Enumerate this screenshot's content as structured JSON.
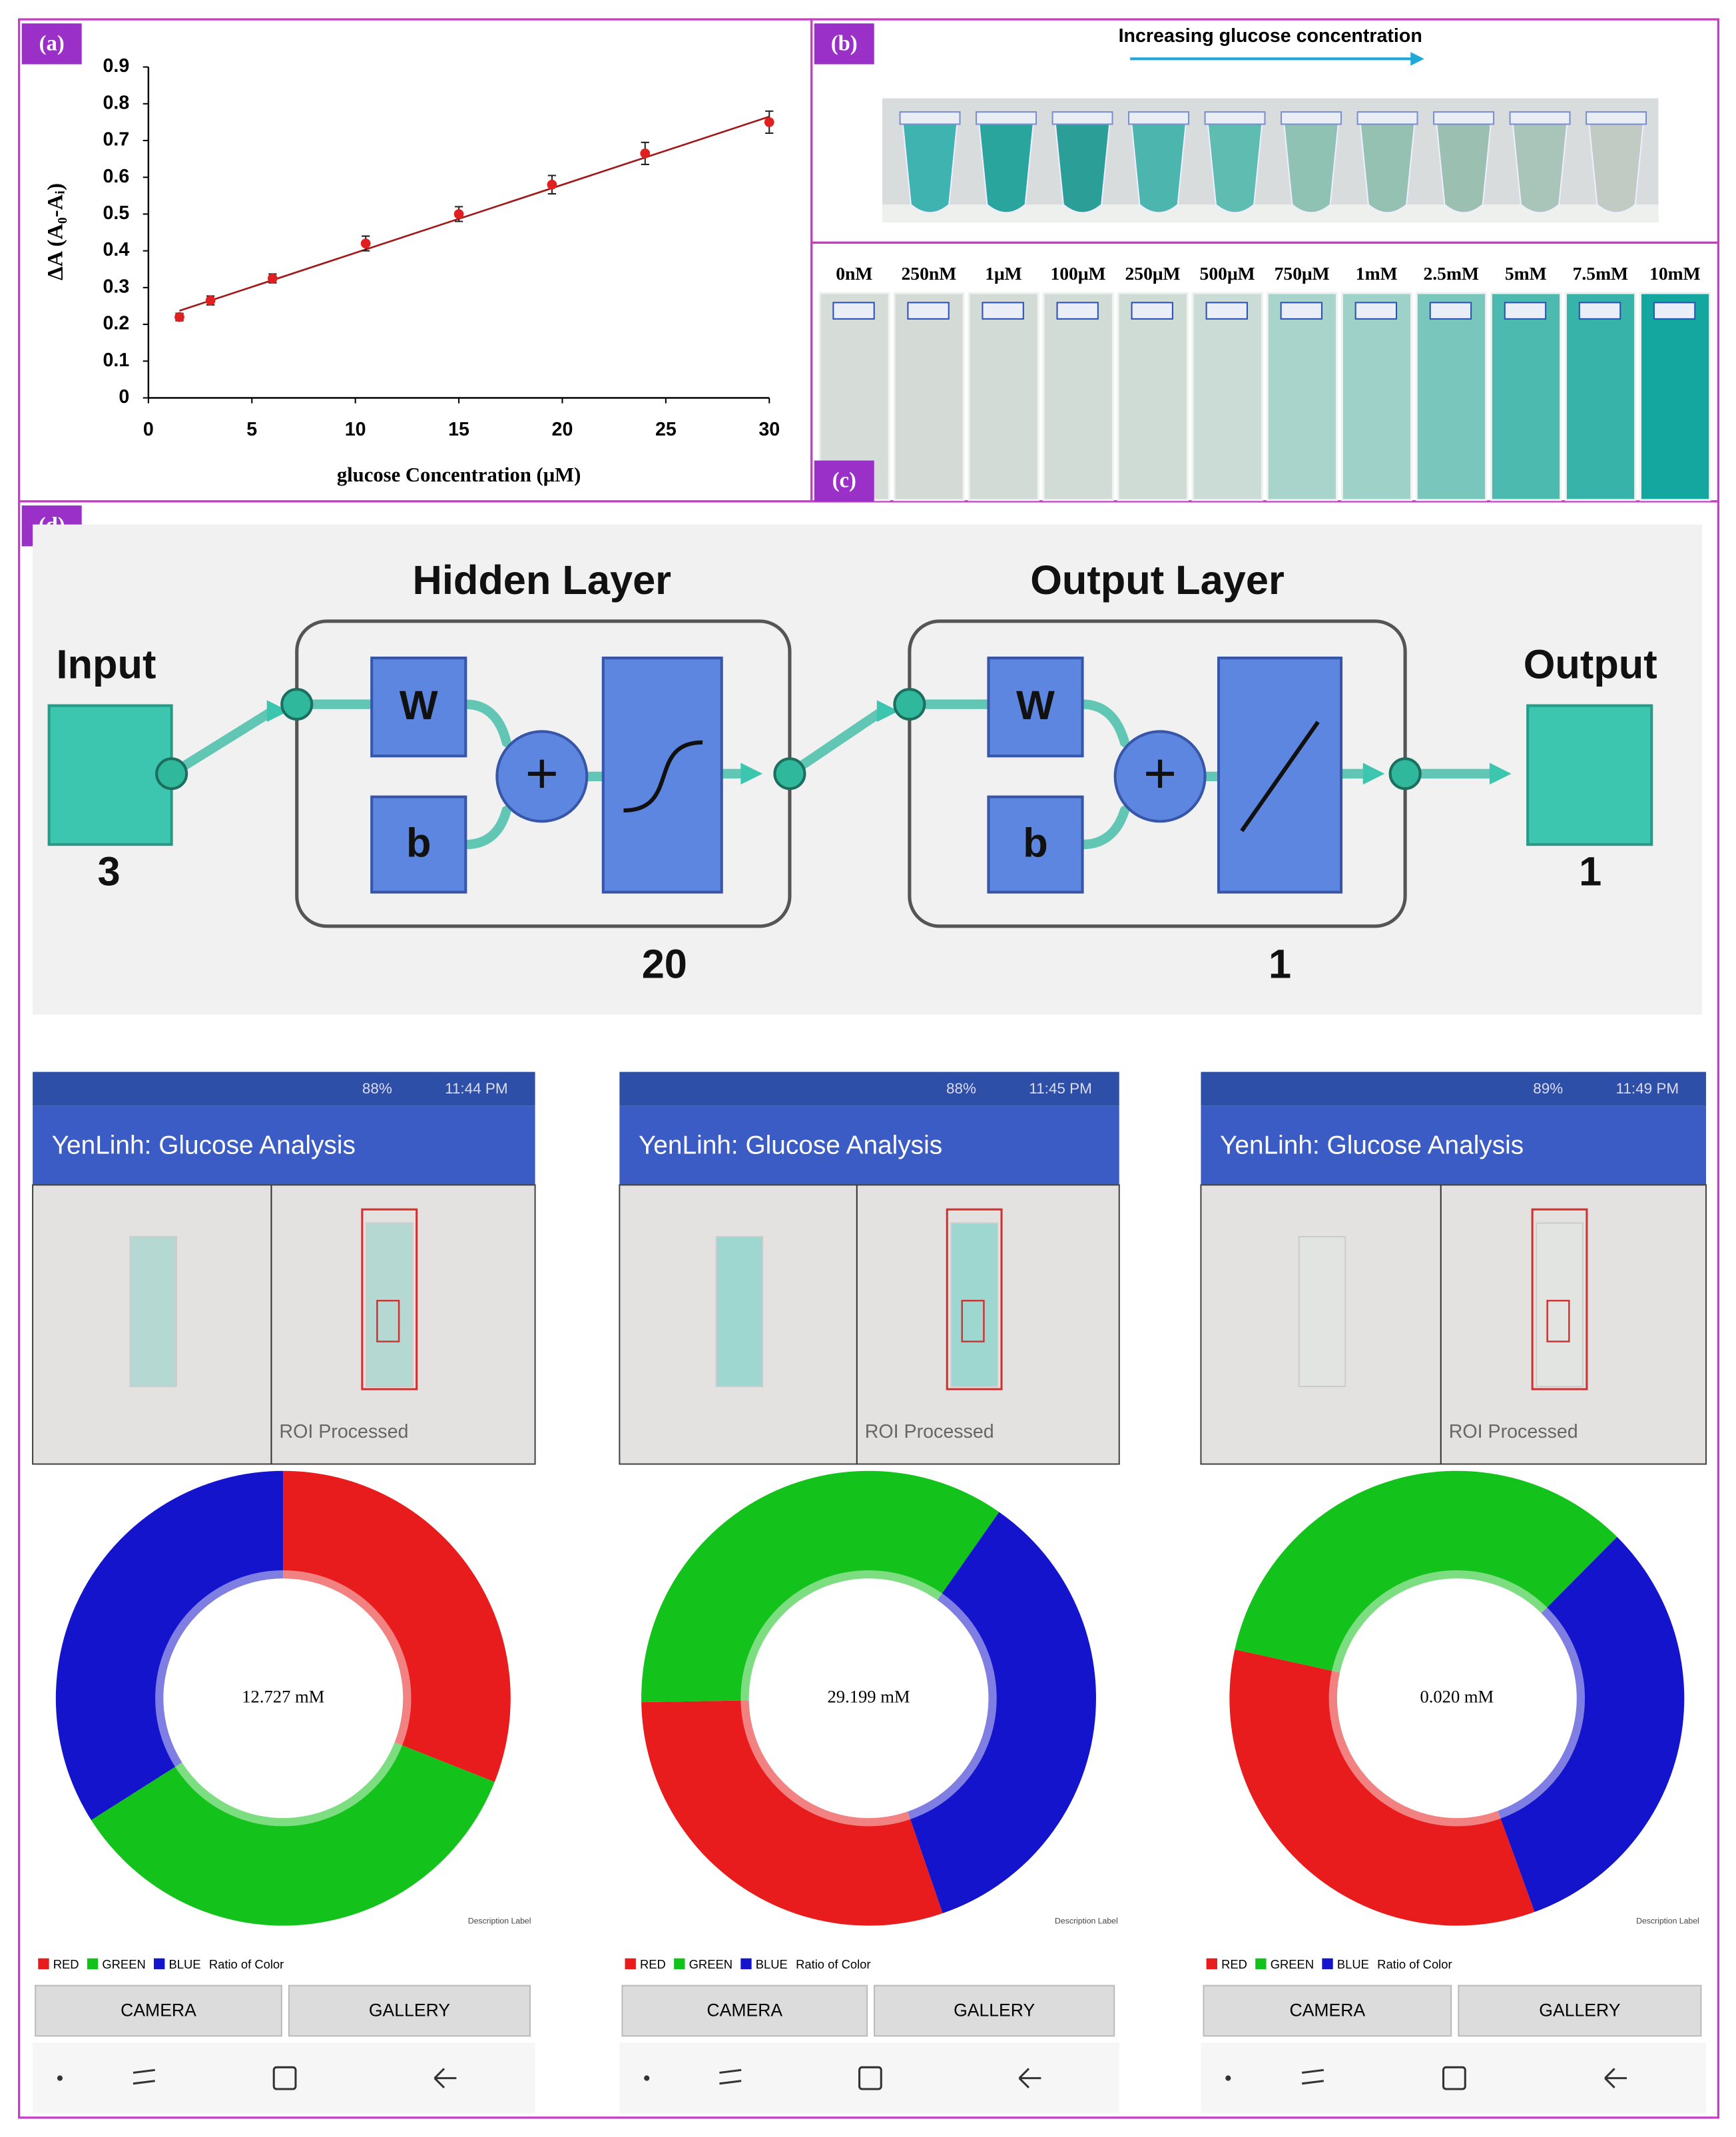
{
  "panel_labels": [
    "(a)",
    "(b)",
    "(c)",
    "(d)"
  ],
  "chart_data": [
    {
      "type": "scatter",
      "x_label": "glucose Concentration (μM)",
      "y_label": "ΔA (A₀-Aᵢ)",
      "x": [
        1.5,
        3,
        6,
        10.5,
        15,
        19.5,
        24,
        30
      ],
      "values": [
        0.22,
        0.265,
        0.325,
        0.42,
        0.5,
        0.58,
        0.665,
        0.75
      ],
      "errors": [
        0.01,
        0.012,
        0.012,
        0.02,
        0.02,
        0.025,
        0.03,
        0.03
      ],
      "color": "#e02020",
      "trendline": {
        "x": [
          1.5,
          30
        ],
        "values": [
          0.237,
          0.765
        ],
        "color": "#a01818"
      },
      "xlim": [
        0,
        30
      ],
      "ylim": [
        0,
        0.9
      ],
      "xticks": [
        0,
        5,
        10,
        15,
        20,
        25,
        30
      ],
      "yticks": [
        0,
        0.1,
        0.2,
        0.3,
        0.4,
        0.5,
        0.6,
        0.7,
        0.8,
        0.9
      ]
    },
    {
      "type": "pie",
      "hole": true,
      "categories": [
        "RED",
        "GREEN",
        "BLUE"
      ],
      "colors": [
        "#e81c1c",
        "#13c21a",
        "#1414cc"
      ],
      "values": [
        31,
        35,
        34
      ],
      "start_angle": 0,
      "center_label": "12.727 mM",
      "legend_title": "Ratio of Color",
      "description": "Description Label"
    },
    {
      "type": "pie",
      "hole": true,
      "categories": [
        "RED",
        "GREEN",
        "BLUE"
      ],
      "colors": [
        "#e81c1c",
        "#13c21a",
        "#1414cc"
      ],
      "values": [
        30,
        35,
        35
      ],
      "start_angle": 161,
      "center_label": "29.199 mM",
      "legend_title": "Ratio of Color",
      "description": "Description Label"
    },
    {
      "type": "pie",
      "hole": true,
      "categories": [
        "RED",
        "GREEN",
        "BLUE"
      ],
      "colors": [
        "#e81c1c",
        "#13c21a",
        "#1414cc"
      ],
      "values": [
        34,
        34,
        32
      ],
      "start_angle": 160,
      "center_label": "0.020 mM",
      "legend_title": "Ratio of Color",
      "description": "Description Label"
    }
  ],
  "panel_b": {
    "caption": "Increasing glucose concentration"
  },
  "panel_c": {
    "concentrations": [
      "0nM",
      "250nM",
      "1μM",
      "100μM",
      "250μM",
      "500μM",
      "750μM",
      "1mM",
      "2.5mM",
      "5mM",
      "7.5mM",
      "10mM"
    ]
  },
  "network": {
    "hidden_title": "Hidden Layer",
    "output_title": "Output Layer",
    "input_label": "Input",
    "output_label": "Output",
    "input_size": 3,
    "hidden_size": 20,
    "output_layer_size": 1,
    "output_size": 1,
    "weight": "W",
    "bias": "b",
    "sum": "+"
  },
  "app_screens": [
    {
      "battery": "88%",
      "status_time": "11:44 PM",
      "app_title": "YenLinh: Glucose Analysis",
      "roi_label": "ROI Processed",
      "buttons": [
        "CAMERA",
        "GALLERY"
      ]
    },
    {
      "battery": "88%",
      "status_time": "11:45 PM",
      "app_title": "YenLinh: Glucose Analysis",
      "roi_label": "ROI Processed",
      "buttons": [
        "CAMERA",
        "GALLERY"
      ]
    },
    {
      "battery": "89%",
      "status_time": "11:49 PM",
      "app_title": "YenLinh: Glucose Analysis",
      "roi_label": "ROI Processed",
      "buttons": [
        "CAMERA",
        "GALLERY"
      ]
    }
  ]
}
